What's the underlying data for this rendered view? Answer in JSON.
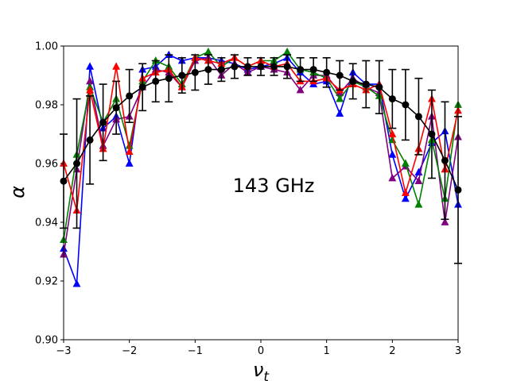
{
  "chart_data": {
    "type": "line",
    "title": "",
    "annotation": "143 GHz",
    "xlabel": "ν",
    "xlabel_sub": "t",
    "ylabel": "α",
    "xlim": [
      -3,
      3
    ],
    "ylim": [
      0.9,
      1.0
    ],
    "xticks": [
      -3,
      -2,
      -1,
      0,
      1,
      2,
      3
    ],
    "xtick_labels": [
      "−3",
      "−2",
      "−1",
      "0",
      "1",
      "2",
      "3"
    ],
    "yticks": [
      0.9,
      0.92,
      0.94,
      0.96,
      0.98,
      1.0
    ],
    "ytick_labels": [
      "0.90",
      "0.92",
      "0.94",
      "0.96",
      "0.98",
      "1.00"
    ],
    "grid": false,
    "x": [
      -3.0,
      -2.8,
      -2.6,
      -2.4,
      -2.2,
      -2.0,
      -1.8,
      -1.6,
      -1.4,
      -1.2,
      -1.0,
      -0.8,
      -0.6,
      -0.4,
      -0.2,
      0.0,
      0.2,
      0.4,
      0.6,
      0.8,
      1.0,
      1.2,
      1.4,
      1.6,
      1.8,
      2.0,
      2.2,
      2.4,
      2.6,
      2.8,
      3.0
    ],
    "series": [
      {
        "color": "#0000ff",
        "marker": "triangle",
        "values": [
          0.931,
          0.919,
          0.993,
          0.972,
          0.976,
          0.96,
          0.992,
          0.993,
          0.997,
          0.995,
          0.996,
          0.996,
          0.995,
          0.994,
          0.992,
          0.993,
          0.994,
          0.996,
          0.991,
          0.987,
          0.988,
          0.977,
          0.991,
          0.987,
          0.987,
          0.963,
          0.948,
          0.957,
          0.967,
          0.971,
          0.946
        ]
      },
      {
        "color": "#800080",
        "marker": "triangle",
        "values": [
          0.929,
          0.958,
          0.988,
          0.966,
          0.975,
          0.976,
          0.986,
          0.992,
          0.991,
          0.986,
          0.995,
          0.996,
          0.99,
          0.994,
          0.991,
          0.993,
          0.992,
          0.991,
          0.985,
          0.99,
          0.99,
          0.984,
          0.989,
          0.986,
          0.984,
          0.955,
          0.959,
          0.954,
          0.976,
          0.94,
          0.969
        ]
      },
      {
        "color": "#008000",
        "marker": "triangle",
        "values": [
          0.934,
          0.963,
          0.986,
          0.974,
          0.982,
          0.966,
          0.988,
          0.995,
          0.993,
          0.987,
          0.996,
          0.998,
          0.993,
          0.996,
          0.993,
          0.995,
          0.995,
          0.998,
          0.992,
          0.991,
          0.989,
          0.982,
          0.988,
          0.986,
          0.983,
          0.968,
          0.96,
          0.946,
          0.968,
          0.948,
          0.98
        ]
      },
      {
        "color": "#ff0000",
        "marker": "triangle",
        "values": [
          0.96,
          0.944,
          0.985,
          0.965,
          0.993,
          0.964,
          0.989,
          0.991,
          0.992,
          0.986,
          0.996,
          0.995,
          0.994,
          0.996,
          0.993,
          0.995,
          0.993,
          0.994,
          0.988,
          0.988,
          0.989,
          0.985,
          0.987,
          0.985,
          0.987,
          0.97,
          0.95,
          0.965,
          0.982,
          0.958,
          0.978
        ]
      },
      {
        "color": "#000000",
        "marker": "circle",
        "values": [
          0.954,
          0.96,
          0.968,
          0.974,
          0.979,
          0.983,
          0.986,
          0.988,
          0.989,
          0.99,
          0.991,
          0.992,
          0.992,
          0.993,
          0.993,
          0.993,
          0.993,
          0.993,
          0.992,
          0.992,
          0.991,
          0.99,
          0.988,
          0.987,
          0.986,
          0.982,
          0.98,
          0.976,
          0.97,
          0.961,
          0.951
        ],
        "errors": [
          0.016,
          0.022,
          0.015,
          0.013,
          0.009,
          0.009,
          0.008,
          0.007,
          0.008,
          0.006,
          0.006,
          0.005,
          0.004,
          0.004,
          0.003,
          0.003,
          0.003,
          0.004,
          0.004,
          0.004,
          0.005,
          0.005,
          0.006,
          0.008,
          0.009,
          0.01,
          0.012,
          0.013,
          0.015,
          0.02,
          0.025
        ]
      }
    ]
  }
}
